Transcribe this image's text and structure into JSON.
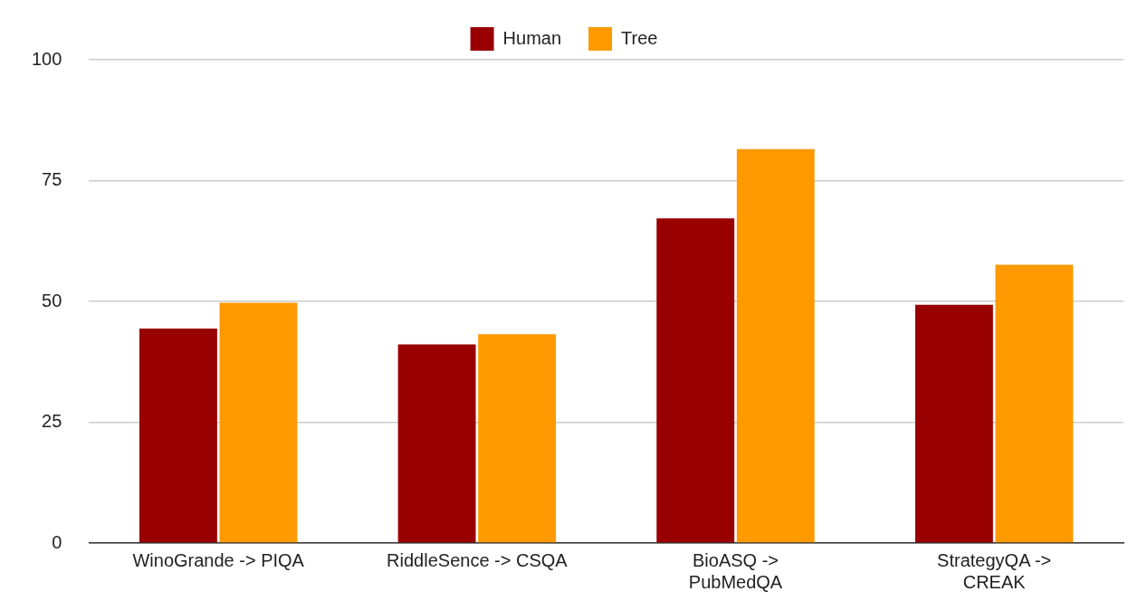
{
  "chart_data": {
    "type": "bar",
    "categories": [
      "WinoGrande -> PIQA",
      "RiddleSence -> CSQA",
      "BioASQ -> PubMedQA",
      "StrategyQA -> CREAK"
    ],
    "series": [
      {
        "name": "Human",
        "color": "#990000",
        "values": [
          44.4,
          41.1,
          67.2,
          49.3
        ]
      },
      {
        "name": "Tree",
        "color": "#ff9900",
        "values": [
          49.7,
          43.2,
          81.5,
          57.6
        ]
      }
    ],
    "ylim": [
      0,
      100
    ],
    "yticks": [
      0,
      25,
      50,
      75,
      100
    ],
    "grid": "y",
    "legend": "top"
  }
}
